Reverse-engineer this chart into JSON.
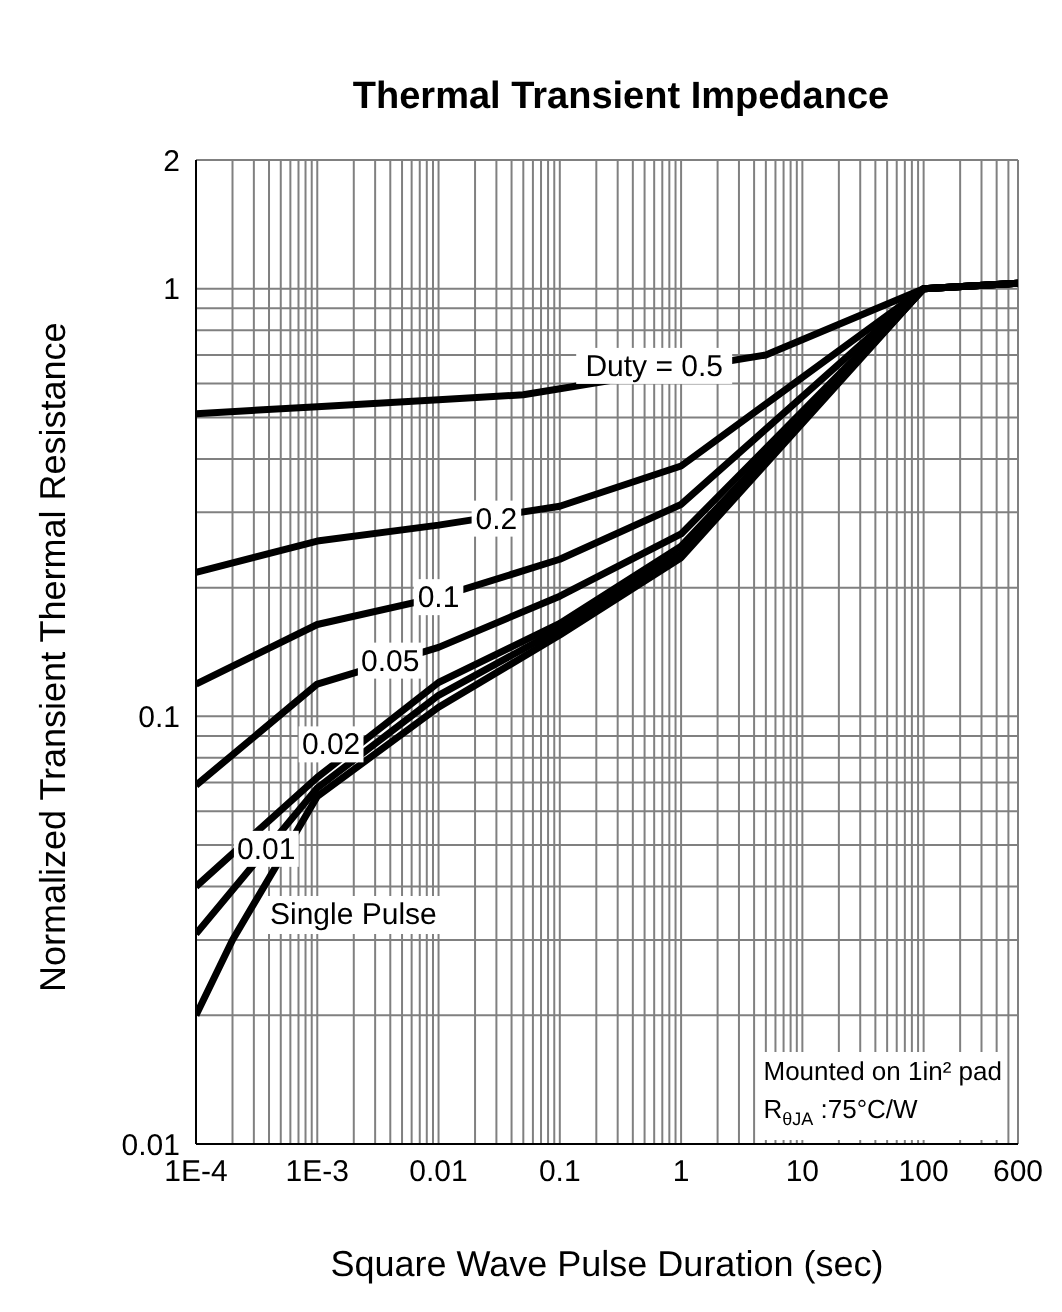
{
  "chart_data": {
    "type": "line",
    "title": "Thermal Transient Impedance",
    "xlabel": "Square Wave Pulse Duration (sec)",
    "ylabel": "Normalized Transient Thermal Resistance",
    "log": "xy",
    "grid": true,
    "marker": "none",
    "line_style": "solid",
    "xlim": [
      0.0001,
      600
    ],
    "xticks": [
      {
        "value": 0.0001,
        "label": "1E-4"
      },
      {
        "value": 0.001,
        "label": "1E-3"
      },
      0.01,
      0.1,
      1,
      10,
      100,
      600
    ],
    "ylim": [
      0.01,
      2
    ],
    "yticks": [
      0.01,
      0.1,
      1,
      2
    ],
    "series": [
      {
        "color": "#000000",
        "x": [
          0.0001,
          0.001,
          0.01,
          0.05,
          5,
          100,
          600
        ],
        "values": [
          0.51,
          0.53,
          0.55,
          0.565,
          0.7,
          1.0,
          1.03
        ]
      },
      {
        "color": "#000000",
        "x": [
          0.0001,
          0.001,
          0.01,
          0.1,
          1,
          100,
          600
        ],
        "values": [
          0.217,
          0.257,
          0.28,
          0.31,
          0.385,
          1.0,
          1.03
        ]
      },
      {
        "color": "#000000",
        "x": [
          0.0001,
          0.001,
          0.01,
          0.1,
          1,
          100,
          600
        ],
        "values": [
          0.119,
          0.164,
          0.19,
          0.233,
          0.313,
          1.0,
          1.03
        ]
      },
      {
        "color": "#000000",
        "x": [
          0.0001,
          0.001,
          0.01,
          0.1,
          1,
          100,
          600
        ],
        "values": [
          0.069,
          0.119,
          0.145,
          0.191,
          0.267,
          1.0,
          1.03
        ]
      },
      {
        "color": "#000000",
        "x": [
          0.0001,
          0.001,
          0.01,
          0.1,
          1,
          100,
          600
        ],
        "values": [
          0.04,
          0.072,
          0.12,
          0.165,
          0.25,
          1.0,
          1.03
        ]
      },
      {
        "color": "#000000",
        "x": [
          0.0001,
          0.001,
          0.01,
          0.1,
          1,
          100,
          600
        ],
        "values": [
          0.031,
          0.068,
          0.112,
          0.16,
          0.24,
          1.0,
          1.03
        ]
      },
      {
        "color": "#000000",
        "x": [
          0.0001,
          0.0002,
          0.001,
          0.01,
          0.1,
          1,
          100,
          600
        ],
        "values": [
          0.02,
          0.03,
          0.065,
          0.105,
          0.155,
          0.235,
          1.0,
          1.03
        ]
      }
    ],
    "annotations": [
      {
        "text": "Duty = 0.5",
        "x": 0.6,
        "y": 0.66
      },
      {
        "text": "0.2",
        "x": 0.03,
        "y": 0.29
      },
      {
        "text": "0.1",
        "x": 0.01,
        "y": 0.19
      },
      {
        "text": "0.05",
        "x": 0.004,
        "y": 0.135
      },
      {
        "text": "0.02",
        "x": 0.0013,
        "y": 0.086
      },
      {
        "text": "0.01",
        "x": 0.00038,
        "y": 0.049
      },
      "Single Pulse",
      "Mounted on 1in² pad",
      "R$_{θJA}$ :75°C/W"
    ]
  }
}
